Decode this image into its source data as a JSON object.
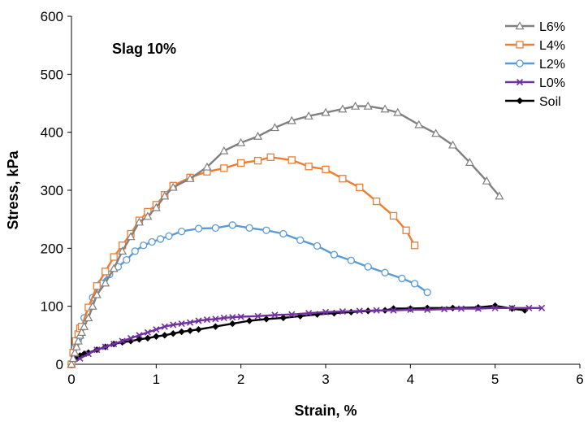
{
  "chart_data": {
    "type": "line",
    "title": "",
    "annotation": "Slag 10%",
    "xlabel": "Strain, %",
    "ylabel": "Stress, kPa",
    "xlim": [
      0,
      6
    ],
    "ylim": [
      0,
      600
    ],
    "xticks": [
      "0",
      "1",
      "2",
      "3",
      "4",
      "5",
      "6"
    ],
    "yticks": [
      "0",
      "100",
      "200",
      "300",
      "400",
      "500",
      "600"
    ],
    "grid": false,
    "legend_position": "top-right",
    "series": [
      {
        "name": "L6%",
        "color": "#808080",
        "marker": "triangle",
        "x": [
          0,
          0.02,
          0.04,
          0.06,
          0.08,
          0.1,
          0.12,
          0.15,
          0.2,
          0.25,
          0.3,
          0.4,
          0.5,
          0.6,
          0.7,
          0.8,
          0.9,
          1.0,
          1.1,
          1.2,
          1.4,
          1.6,
          1.8,
          2.0,
          2.2,
          2.4,
          2.6,
          2.8,
          3.0,
          3.2,
          3.35,
          3.5,
          3.7,
          3.85,
          4.1,
          4.3,
          4.5,
          4.7,
          4.9,
          5.05
        ],
        "y": [
          0,
          10,
          20,
          30,
          40,
          50,
          55,
          65,
          80,
          100,
          120,
          140,
          165,
          195,
          220,
          245,
          255,
          270,
          290,
          305,
          320,
          340,
          368,
          382,
          393,
          408,
          420,
          428,
          434,
          440,
          445,
          445,
          440,
          434,
          413,
          398,
          378,
          348,
          316,
          290
        ]
      },
      {
        "name": "L4%",
        "color": "#ED7D31",
        "marker": "square",
        "x": [
          0,
          0.02,
          0.05,
          0.08,
          0.1,
          0.12,
          0.2,
          0.3,
          0.4,
          0.5,
          0.6,
          0.7,
          0.8,
          0.9,
          1.0,
          1.1,
          1.2,
          1.4,
          1.6,
          1.8,
          2.0,
          2.2,
          2.35,
          2.6,
          2.8,
          3.0,
          3.2,
          3.4,
          3.6,
          3.8,
          3.95,
          4.05
        ],
        "y": [
          0,
          20,
          40,
          52,
          62,
          65,
          98,
          135,
          160,
          185,
          205,
          225,
          248,
          263,
          275,
          292,
          308,
          322,
          332,
          338,
          347,
          351,
          357,
          352,
          341,
          336,
          320,
          305,
          281,
          256,
          231,
          205
        ]
      },
      {
        "name": "L2%",
        "color": "#5B9BD5",
        "marker": "circle",
        "x": [
          0,
          0.02,
          0.05,
          0.08,
          0.1,
          0.15,
          0.25,
          0.35,
          0.45,
          0.55,
          0.65,
          0.75,
          0.85,
          0.95,
          1.05,
          1.15,
          1.3,
          1.5,
          1.7,
          1.9,
          2.1,
          2.3,
          2.5,
          2.7,
          2.9,
          3.1,
          3.3,
          3.5,
          3.7,
          3.9,
          4.05,
          4.2
        ],
        "y": [
          0,
          20,
          35,
          42,
          48,
          80,
          115,
          140,
          155,
          168,
          180,
          195,
          205,
          211,
          216,
          221,
          229,
          234,
          235,
          240,
          235,
          231,
          225,
          214,
          204,
          189,
          179,
          168,
          158,
          148,
          139,
          124
        ]
      },
      {
        "name": "L0%",
        "color": "#7030A0",
        "marker": "x",
        "x": [
          0,
          0.1,
          0.2,
          0.3,
          0.4,
          0.5,
          0.6,
          0.7,
          0.8,
          0.9,
          1.0,
          1.1,
          1.2,
          1.3,
          1.4,
          1.5,
          1.6,
          1.7,
          1.8,
          1.9,
          2.0,
          2.2,
          2.4,
          2.6,
          2.8,
          3.0,
          3.2,
          3.4,
          3.6,
          3.8,
          4.0,
          4.2,
          4.4,
          4.6,
          4.8,
          5.0,
          5.2,
          5.4,
          5.55
        ],
        "y": [
          0,
          10,
          18,
          25,
          30,
          35,
          40,
          45,
          50,
          55,
          60,
          65,
          68,
          70,
          72,
          75,
          77,
          78,
          80,
          81,
          82,
          83,
          85,
          86,
          88,
          90,
          91,
          92,
          93,
          93,
          94,
          94,
          95,
          96,
          96,
          97,
          97,
          97,
          97
        ]
      },
      {
        "name": "Soil",
        "color": "#000000",
        "marker": "diamond",
        "x": [
          0,
          0.05,
          0.1,
          0.15,
          0.2,
          0.3,
          0.4,
          0.5,
          0.6,
          0.7,
          0.8,
          0.9,
          1.0,
          1.1,
          1.2,
          1.3,
          1.4,
          1.5,
          1.7,
          1.9,
          2.1,
          2.3,
          2.5,
          2.7,
          2.9,
          3.1,
          3.3,
          3.5,
          3.7,
          3.8,
          4.0,
          4.2,
          4.5,
          4.8,
          5.0,
          5.2,
          5.35
        ],
        "y": [
          0,
          10,
          15,
          18,
          20,
          25,
          30,
          35,
          38,
          40,
          43,
          45,
          48,
          50,
          53,
          56,
          58,
          60,
          65,
          70,
          75,
          78,
          80,
          83,
          86,
          88,
          90,
          92,
          93,
          96,
          96,
          97,
          97,
          98,
          101,
          96,
          93
        ]
      }
    ]
  }
}
